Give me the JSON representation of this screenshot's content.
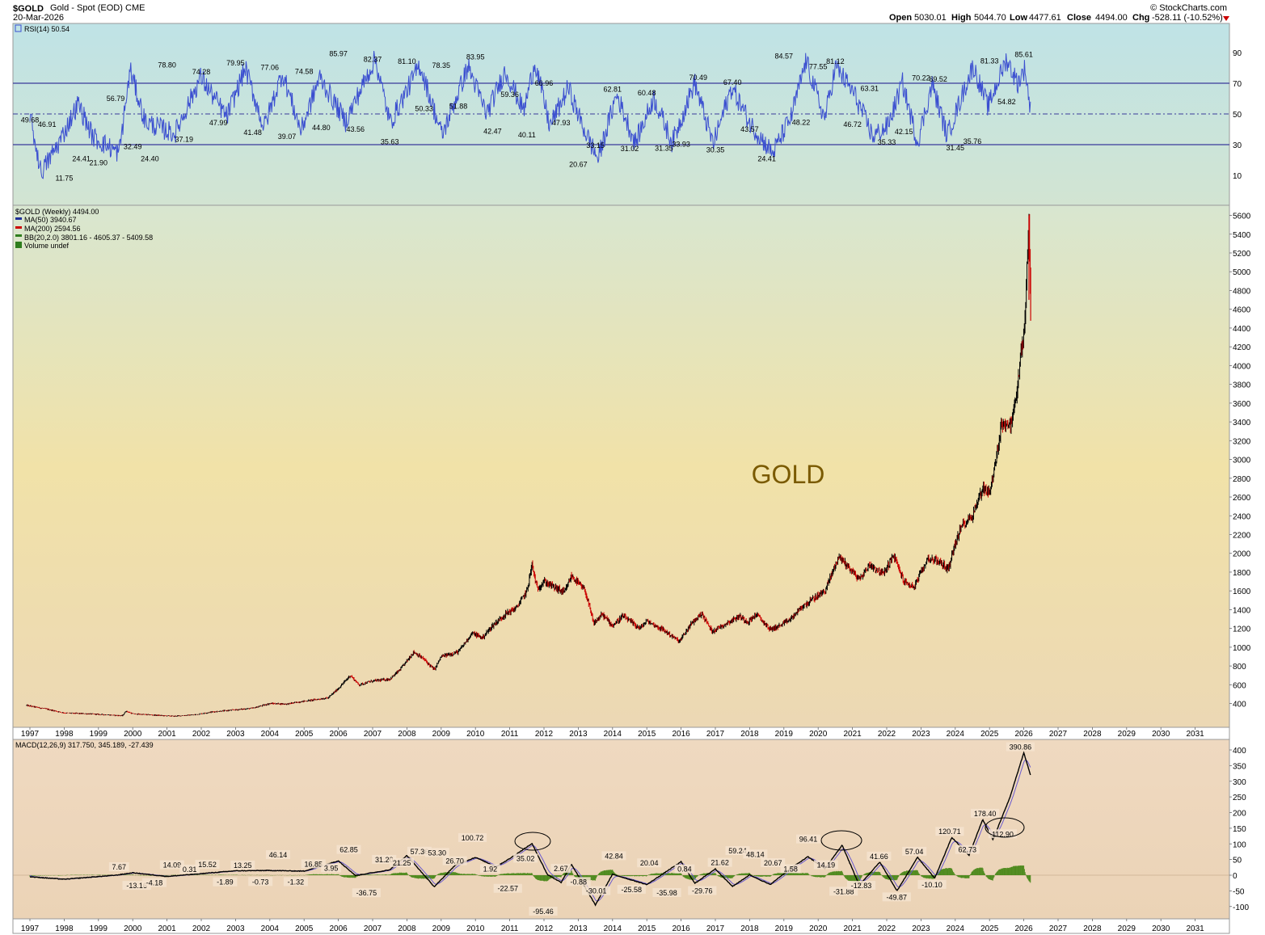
{
  "header": {
    "symbol": "$GOLD",
    "description": "Gold - Spot (EOD)",
    "exchange": "CME",
    "date": "20-Mar-2026",
    "watermark": "© StockCharts.com",
    "open_label": "Open",
    "open_value": "5030.01",
    "high_label": "High",
    "high_value": "5044.70",
    "low_label": "Low",
    "low_value": "4477.61",
    "close_label": "Close",
    "close_value": "4494.00",
    "chg_label": "Chg",
    "chg_value": "-528.11 (-10.52%)",
    "chg_icon": "down-triangle-icon"
  },
  "colors": {
    "rsi_line": "#3b4fd0",
    "rsi_fill": "#5b8fc0",
    "price_up": "#000000",
    "price_down": "#cc0000",
    "macd_line": "#000000",
    "macd_signal": "#6a5acd",
    "histogram": "#4f8a1e",
    "ma50": "#1f2f99",
    "ma200": "#cc0000",
    "bb": "#2e7d1e",
    "volume": "#2e7d1e",
    "gold_text": "#7a5a00"
  },
  "rsi_panel": {
    "legend": "RSI(14) 50.54",
    "ticks": [
      "90",
      "70",
      "50",
      "30",
      "10"
    ],
    "labels": [
      "49.68",
      "46.91",
      "11.75",
      "24.41",
      "21.90",
      "56.79",
      "32.49",
      "24.40",
      "78.80",
      "37.19",
      "74.28",
      "47.99",
      "79.95",
      "41.48",
      "77.06",
      "39.07",
      "74.58",
      "44.80",
      "85.97",
      "43.56",
      "82.37",
      "35.63",
      "81.10",
      "50.33",
      "78.35",
      "51.88",
      "83.95",
      "42.47",
      "59.36",
      "40.11",
      "66.96",
      "47.93",
      "20.67",
      "33.15",
      "62.81",
      "31.02",
      "60.48",
      "31.35",
      "33.93",
      "70.49",
      "30.35",
      "67.40",
      "43.57",
      "24.41",
      "84.57",
      "48.22",
      "77.55",
      "81.12",
      "46.72",
      "63.31",
      "35.33",
      "42.15",
      "70.22",
      "69.52",
      "31.45",
      "35.76",
      "81.33",
      "54.82",
      "85.61"
    ]
  },
  "price_panel": {
    "legend_title": "$GOLD (Weekly) 4494.00",
    "legend_ma50": "MA(50) 3940.67",
    "legend_ma200": "MA(200) 2594.56",
    "legend_bb": "BB(20,2.0) 3801.16 - 4605.37 - 5409.58",
    "legend_volume": "Volume undef",
    "watermark_text": "GOLD",
    "ticks": [
      "5600",
      "5400",
      "5200",
      "5000",
      "4800",
      "4600",
      "4400",
      "4200",
      "4000",
      "3800",
      "3600",
      "3400",
      "3200",
      "3000",
      "2800",
      "2600",
      "2400",
      "2200",
      "2000",
      "1800",
      "1600",
      "1400",
      "1200",
      "1000",
      "800",
      "600",
      "400"
    ]
  },
  "macd_panel": {
    "legend": "MACD(12,26,9) 317.750, 345.189, -27.439",
    "ticks": [
      "400",
      "350",
      "300",
      "250",
      "200",
      "150",
      "100",
      "50",
      "0",
      "-50",
      "-100"
    ],
    "labels": [
      "7.67",
      "-13.16",
      "-4.18",
      "14.09",
      "0.31",
      "15.52",
      "-1.89",
      "13.25",
      "-0.73",
      "46.14",
      "-1.32",
      "16.85",
      "3.95",
      "62.85",
      "-36.75",
      "31.20",
      "21.25",
      "57.36",
      "53.30",
      "26.70",
      "100.72",
      "1.92",
      "-22.57",
      "35.02",
      "-95.46",
      "2.67",
      "-0.88",
      "-30.01",
      "42.84",
      "-25.58",
      "20.04",
      "-35.98",
      "0.84",
      "-29.76",
      "21.62",
      "59.24",
      "48.14",
      "20.67",
      "1.58",
      "96.41",
      "14.19",
      "-31.88",
      "-12.83",
      "41.66",
      "-49.87",
      "57.04",
      "-10.10",
      "120.71",
      "62.73",
      "178.40",
      "112.90",
      "390.86"
    ]
  },
  "x_axis": {
    "years": [
      "1997",
      "1998",
      "1999",
      "2000",
      "2001",
      "2002",
      "2003",
      "2004",
      "2005",
      "2006",
      "2007",
      "2008",
      "2009",
      "2010",
      "2011",
      "2012",
      "2013",
      "2014",
      "2015",
      "2016",
      "2017",
      "2018",
      "2019",
      "2020",
      "2021",
      "2022",
      "2023",
      "2024",
      "2025",
      "2026",
      "2027",
      "2028",
      "2029",
      "2030",
      "2031"
    ]
  },
  "chart_data": [
    {
      "type": "line",
      "title": "RSI(14) 50.54",
      "x": [
        "1997",
        "1999",
        "2000",
        "2003",
        "2005",
        "2006",
        "2007",
        "2009",
        "2010",
        "2011",
        "2012",
        "2013",
        "2014",
        "2015",
        "2016",
        "2017",
        "2018",
        "2019",
        "2020",
        "2021",
        "2022",
        "2023",
        "2024",
        "2025",
        "2026"
      ],
      "series": [
        {
          "name": "RSI(14)",
          "values": [
            49.68,
            21.9,
            78.8,
            79.95,
            44.8,
            85.97,
            43.56,
            35.63,
            81.1,
            83.95,
            42.47,
            20.67,
            62.81,
            31.35,
            70.49,
            30.35,
            24.41,
            84.57,
            81.12,
            35.33,
            70.22,
            31.45,
            81.33,
            54.82,
            50.54
          ]
        }
      ],
      "ylim": [
        0,
        100
      ],
      "reference_lines": [
        70,
        50,
        30
      ]
    },
    {
      "type": "line",
      "title": "$GOLD (Weekly) 4494.00",
      "x": [
        "1997",
        "1998",
        "1999",
        "2000",
        "2001",
        "2002",
        "2003",
        "2004",
        "2005",
        "2006",
        "2007",
        "2008",
        "2009",
        "2010",
        "2011",
        "2012",
        "2013",
        "2014",
        "2015",
        "2016",
        "2017",
        "2018",
        "2019",
        "2020",
        "2021",
        "2022",
        "2023",
        "2024",
        "2025",
        "2026"
      ],
      "series": [
        {
          "name": "$GOLD",
          "values": [
            370,
            300,
            290,
            290,
            270,
            280,
            340,
            400,
            430,
            520,
            650,
            880,
            880,
            1120,
            1600,
            1650,
            1670,
            1230,
            1180,
            1100,
            1200,
            1300,
            1280,
            1550,
            1900,
            1800,
            1820,
            2060,
            2650,
            4494
          ]
        }
      ],
      "ylim": [
        250,
        5700
      ],
      "overlays": [
        "MA(50) 3940.67",
        "MA(200) 2594.56",
        "BB(20,2.0) 3801.16 - 4605.37 - 5409.58"
      ]
    },
    {
      "type": "line",
      "title": "MACD(12,26,9) 317.750, 345.189, -27.439",
      "x": [
        "1997",
        "2000",
        "2006",
        "2008",
        "2009",
        "2010",
        "2011",
        "2012",
        "2013",
        "2016",
        "2017",
        "2020",
        "2021",
        "2022",
        "2023",
        "2024",
        "2025",
        "2026"
      ],
      "series": [
        {
          "name": "MACD(12,26,9)",
          "values": [
            -5,
            7.67,
            46.14,
            62.85,
            -36.75,
            57.36,
            100.72,
            -22.57,
            -95.46,
            42.84,
            -35.98,
            96.41,
            -31.88,
            41.66,
            -49.87,
            57.04,
            178.4,
            317.75
          ]
        }
      ],
      "ylim": [
        -125,
        425
      ]
    }
  ]
}
